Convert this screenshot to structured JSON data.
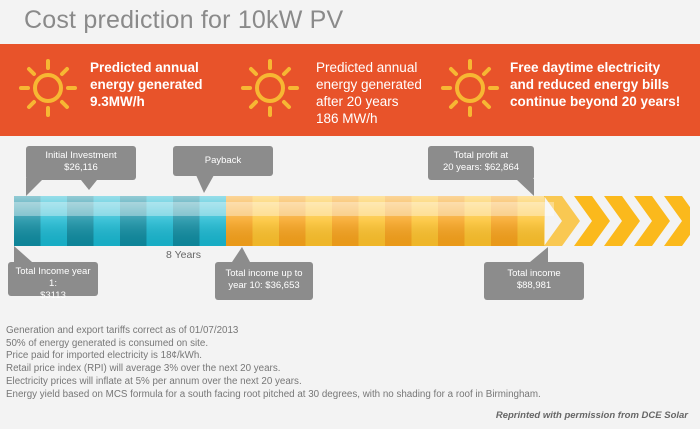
{
  "title": "Cost prediction for 10kW PV",
  "banner": {
    "color": "#e8532a",
    "features": [
      {
        "line1": "Predicted annual",
        "line2": "energy generated",
        "line3": "9.3MW/h",
        "icon": "sun-icon"
      },
      {
        "line1": "Predicted annual",
        "line2": "energy generated",
        "line3": "after 20 years",
        "line4": "186 MW/h",
        "icon": "sun-icon"
      },
      {
        "line1": "Free daytime electricity",
        "line2": "and reduced energy bills",
        "line3": "continue beyond 20 years!",
        "icon": "sun-icon"
      }
    ]
  },
  "callouts": {
    "initial_investment": {
      "label": "Initial Investment",
      "value": "$26,116"
    },
    "payback": {
      "label": "Payback"
    },
    "total_profit": {
      "label": "Total profit at",
      "value": "20 years: $62,864"
    },
    "income_year1": {
      "label": "Total Income year 1:",
      "value": "$3113"
    },
    "income_year10": {
      "label": "Total income up to",
      "value": "year 10: $36,653"
    },
    "total_income": {
      "label": "Total income",
      "value": "$88,981"
    }
  },
  "timeline": {
    "payback_label": "8 Years",
    "colors": {
      "teal_dark": "#0e8ba0",
      "teal_light": "#18b6cf",
      "orange_dark": "#f6a11a",
      "orange_light": "#fcc02a",
      "arrow": "#fbb91c"
    }
  },
  "notes": [
    "Generation and export tariffs correct as of 01/07/2013",
    "50% of energy generated is consumed on site.",
    "Price paid for imported electricity is 18¢/kWh.",
    "Retail price index (RPI) will average 3% over the next 20 years.",
    "Electricity prices will inflate at 5% per annum over the next 20 years.",
    "Energy yield based on MCS formula for a south facing root pitched at 30 degrees, with no shading for a roof in Birmingham."
  ],
  "credit": "Reprinted with permission from DCE Solar"
}
